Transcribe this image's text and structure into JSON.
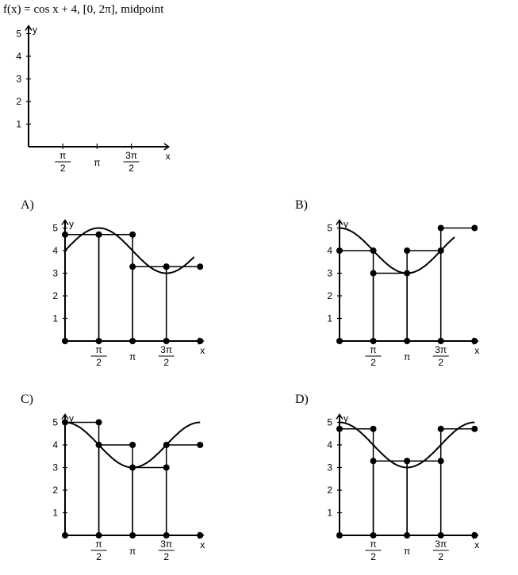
{
  "question": {
    "text": "f(x) = cos x + 4, [0, 2π], midpoint"
  },
  "chart_data": [
    {
      "id": "question-axes",
      "type": "line",
      "xlabel": "x",
      "ylabel": "y",
      "xlim": [
        0,
        6.2832
      ],
      "ylim": [
        0,
        5
      ],
      "xticks": [
        {
          "value": 1.5708,
          "label": "π/2"
        },
        {
          "value": 3.1416,
          "label": "π"
        },
        {
          "value": 4.7124,
          "label": "3π/2"
        }
      ],
      "yticks": [
        1,
        2,
        3,
        4,
        5
      ],
      "curve": "none",
      "rectangles": []
    },
    {
      "id": "option-a",
      "label": "A)",
      "type": "line",
      "xlabel": "x",
      "ylabel": "y",
      "xlim": [
        0,
        6.2832
      ],
      "ylim": [
        0,
        5
      ],
      "xticks": [
        {
          "value": 1.5708,
          "label": "π/2"
        },
        {
          "value": 3.1416,
          "label": "π"
        },
        {
          "value": 4.7124,
          "label": "3π/2"
        }
      ],
      "yticks": [
        1,
        2,
        3,
        4,
        5
      ],
      "curve": "sin x + 4",
      "rectangles": [
        {
          "x0": 0,
          "x1": 1.5708,
          "height": 4.71
        },
        {
          "x0": 1.5708,
          "x1": 3.1416,
          "height": 4.71
        },
        {
          "x0": 3.1416,
          "x1": 4.7124,
          "height": 3.29
        },
        {
          "x0": 4.7124,
          "x1": 6.2832,
          "height": 3.29
        }
      ]
    },
    {
      "id": "option-b",
      "label": "B)",
      "type": "line",
      "xlabel": "x",
      "ylabel": "y",
      "xlim": [
        0,
        6.2832
      ],
      "ylim": [
        0,
        5
      ],
      "xticks": [
        {
          "value": 1.5708,
          "label": "π/2"
        },
        {
          "value": 3.1416,
          "label": "π"
        },
        {
          "value": 4.7124,
          "label": "3π/2"
        }
      ],
      "yticks": [
        1,
        2,
        3,
        4,
        5
      ],
      "curve": "cos x + 4",
      "rectangles": [
        {
          "x0": 0,
          "x1": 1.5708,
          "height": 4
        },
        {
          "x0": 1.5708,
          "x1": 3.1416,
          "height": 3
        },
        {
          "x0": 3.1416,
          "x1": 4.7124,
          "height": 4
        },
        {
          "x0": 4.7124,
          "x1": 6.2832,
          "height": 5
        }
      ]
    },
    {
      "id": "option-c",
      "label": "C)",
      "type": "line",
      "xlabel": "x",
      "ylabel": "y",
      "xlim": [
        0,
        6.2832
      ],
      "ylim": [
        0,
        5
      ],
      "xticks": [
        {
          "value": 1.5708,
          "label": "π/2"
        },
        {
          "value": 3.1416,
          "label": "π"
        },
        {
          "value": 4.7124,
          "label": "3π/2"
        }
      ],
      "yticks": [
        1,
        2,
        3,
        4,
        5
      ],
      "curve": "cos x + 4",
      "rectangles": [
        {
          "x0": 0,
          "x1": 1.5708,
          "height": 5
        },
        {
          "x0": 1.5708,
          "x1": 3.1416,
          "height": 4
        },
        {
          "x0": 3.1416,
          "x1": 4.7124,
          "height": 3
        },
        {
          "x0": 4.7124,
          "x1": 6.2832,
          "height": 4
        }
      ]
    },
    {
      "id": "option-d",
      "label": "D)",
      "type": "line",
      "xlabel": "x",
      "ylabel": "y",
      "xlim": [
        0,
        6.2832
      ],
      "ylim": [
        0,
        5
      ],
      "xticks": [
        {
          "value": 1.5708,
          "label": "π/2"
        },
        {
          "value": 3.1416,
          "label": "π"
        },
        {
          "value": 4.7124,
          "label": "3π/2"
        }
      ],
      "yticks": [
        1,
        2,
        3,
        4,
        5
      ],
      "curve": "cos x + 4",
      "rectangles": [
        {
          "x0": 0,
          "x1": 1.5708,
          "height": 4.71
        },
        {
          "x0": 1.5708,
          "x1": 3.1416,
          "height": 3.29
        },
        {
          "x0": 3.1416,
          "x1": 4.7124,
          "height": 3.29
        },
        {
          "x0": 4.7124,
          "x1": 6.2832,
          "height": 4.71
        }
      ]
    }
  ]
}
